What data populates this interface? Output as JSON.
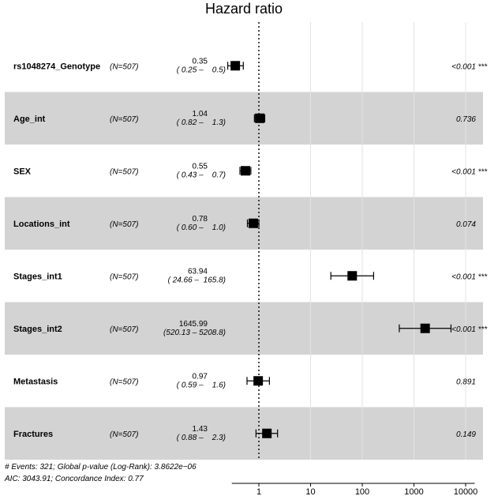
{
  "chart_data": {
    "type": "forest",
    "title": "Hazard ratio",
    "x_scale": "log",
    "xlim": [
      0.12,
      20000
    ],
    "x_ticks": [
      1,
      10,
      100,
      1000,
      10000
    ],
    "x_tick_labels": [
      "1",
      "10",
      "100",
      "1000",
      "10000"
    ],
    "reference_line": 1,
    "rows": [
      {
        "variable": "rs1048274_Genotype",
        "n": "(N=507)",
        "hr": 0.35,
        "hr_label": "0.35",
        "ci_low": 0.25,
        "ci_high": 0.5,
        "ci_label": "( 0.25 –    0.5)",
        "p_label": "<0.001",
        "stars": "***",
        "shaded": false
      },
      {
        "variable": "Age_int",
        "n": "(N=507)",
        "hr": 1.04,
        "hr_label": "1.04",
        "ci_low": 0.82,
        "ci_high": 1.3,
        "ci_label": "( 0.82 –    1.3)",
        "p_label": "0.736",
        "stars": "",
        "shaded": true
      },
      {
        "variable": "SEX",
        "n": "(N=507)",
        "hr": 0.55,
        "hr_label": "0.55",
        "ci_low": 0.43,
        "ci_high": 0.7,
        "ci_label": "( 0.43 –    0.7)",
        "p_label": "<0.001",
        "stars": "***",
        "shaded": false
      },
      {
        "variable": "Locations_int",
        "n": "(N=507)",
        "hr": 0.78,
        "hr_label": "0.78",
        "ci_low": 0.6,
        "ci_high": 1.0,
        "ci_label": "( 0.60 –    1.0)",
        "p_label": "0.074",
        "stars": "",
        "shaded": true
      },
      {
        "variable": "Stages_int1",
        "n": "(N=507)",
        "hr": 63.94,
        "hr_label": "63.94",
        "ci_low": 24.66,
        "ci_high": 165.8,
        "ci_label": "( 24.66 –  165.8)",
        "p_label": "<0.001",
        "stars": "***",
        "shaded": false
      },
      {
        "variable": "Stages_int2",
        "n": "(N=507)",
        "hr": 1645.99,
        "hr_label": "1645.99",
        "ci_low": 520.13,
        "ci_high": 5208.8,
        "ci_label": "(520.13 – 5208.8)",
        "p_label": "<0.001",
        "stars": "***",
        "shaded": true
      },
      {
        "variable": "Metastasis",
        "n": "(N=507)",
        "hr": 0.97,
        "hr_label": "0.97",
        "ci_low": 0.59,
        "ci_high": 1.6,
        "ci_label": "( 0.59 –    1.6)",
        "p_label": "0.891",
        "stars": "",
        "shaded": false
      },
      {
        "variable": "Fractures",
        "n": "(N=507)",
        "hr": 1.43,
        "hr_label": "1.43",
        "ci_low": 0.88,
        "ci_high": 2.3,
        "ci_label": "( 0.88 –    2.3)",
        "p_label": "0.149",
        "stars": "",
        "shaded": true
      }
    ],
    "footnote": [
      "# Events: 321; Global p-value (Log-Rank): 3.8622e−06",
      "AIC: 3043.91; Concordance Index: 0.77"
    ]
  },
  "colors": {
    "shaded_row": "#d3d3d3",
    "marker": "#000000",
    "gridline": "#e3e3e3"
  }
}
